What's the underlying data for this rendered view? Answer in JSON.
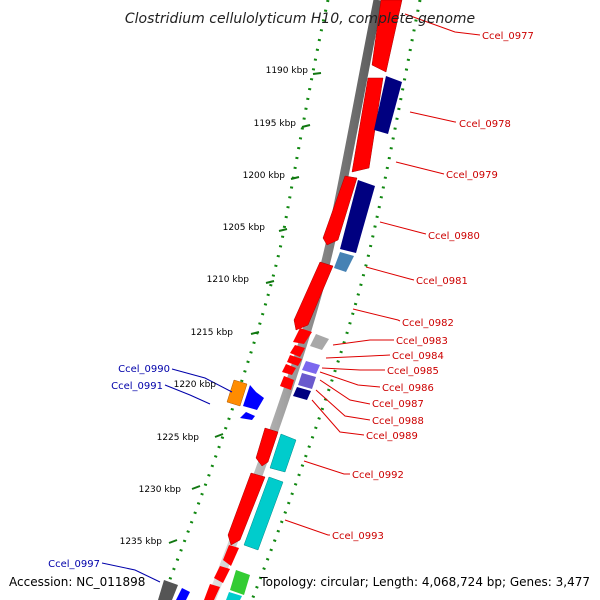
{
  "header": {
    "title": "Clostridium cellulolyticum H10, complete genome"
  },
  "footer": {
    "accession": "Accession: NC_011898",
    "summary": "Topology: circular; Length: 4,068,724 bp; Genes: 3,477"
  },
  "ticks": [
    "1190 kbp",
    "1195 kbp",
    "1200 kbp",
    "1205 kbp",
    "1210 kbp",
    "1215 kbp",
    "1220 kbp",
    "1225 kbp",
    "1230 kbp",
    "1235 kbp"
  ],
  "colors": {
    "cds_red": "#ff0000",
    "navy": "#000080",
    "steel": "#4682b4",
    "grey": "#a8a8a8",
    "slate": "#7b68ee",
    "orange": "#ff8c00",
    "blue": "#0000ff",
    "cyan": "#00cccc",
    "green": "#33cc33",
    "darkgrey": "#555555",
    "label_right": "#cc0000",
    "label_left": "#0000aa",
    "dots": "#118811"
  },
  "labels_right": [
    "Ccel_0977",
    "Ccel_0978",
    "Ccel_0979",
    "Ccel_0980",
    "Ccel_0981",
    "Ccel_0982",
    "Ccel_0983",
    "Ccel_0984",
    "Ccel_0985",
    "Ccel_0986",
    "Ccel_0987",
    "Ccel_0988",
    "Ccel_0989",
    "Ccel_0992",
    "Ccel_0993"
  ],
  "labels_left": [
    "Ccel_0990",
    "Ccel_0991",
    "Ccel_0997"
  ]
}
